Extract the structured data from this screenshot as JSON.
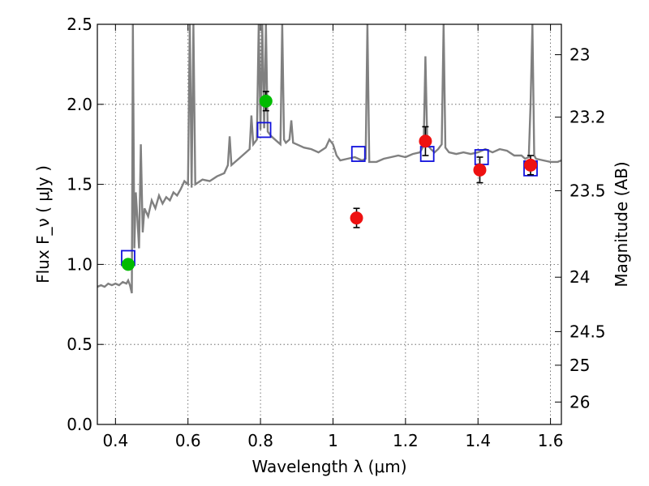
{
  "chart_data": {
    "type": "scatter",
    "xlabel": "Wavelength  λ (μm)",
    "ylabel": "Flux  F_ν  ( μJy )",
    "ylabel_right": "Magnitude (AB)",
    "xlim": [
      0.35,
      1.63
    ],
    "ylim": [
      0.0,
      2.5
    ],
    "grid": true,
    "x_ticks": [
      0.4,
      0.6,
      0.8,
      1.0,
      1.2,
      1.4,
      1.6
    ],
    "x_tick_labels": [
      "0.4",
      "0.6",
      "0.8",
      "1",
      "1.2",
      "1.4",
      "1.6"
    ],
    "y_ticks": [
      0.0,
      0.5,
      1.0,
      1.5,
      2.0,
      2.5
    ],
    "y_tick_labels": [
      "0.0",
      "0.5",
      "1.0",
      "1.5",
      "2.0",
      "2.5"
    ],
    "right_ticks": [
      {
        "label": "23",
        "flux": 2.31
      },
      {
        "label": "23.2",
        "flux": 1.92
      },
      {
        "label": "23.5",
        "flux": 1.46
      },
      {
        "label": "24",
        "flux": 0.92
      },
      {
        "label": "24.5",
        "flux": 0.58
      },
      {
        "label": "25",
        "flux": 0.37
      },
      {
        "label": "26",
        "flux": 0.14
      }
    ],
    "colors": {
      "spectrum": "#808080",
      "green_points": "#00bb00",
      "red_points": "#ee1111",
      "model_boxes": "#1111dd",
      "errorbars": "#000000"
    },
    "series": [
      {
        "kind": "spectrum-line",
        "points": [
          [
            0.35,
            0.86
          ],
          [
            0.36,
            0.87
          ],
          [
            0.37,
            0.86
          ],
          [
            0.38,
            0.88
          ],
          [
            0.39,
            0.87
          ],
          [
            0.4,
            0.88
          ],
          [
            0.41,
            0.87
          ],
          [
            0.42,
            0.89
          ],
          [
            0.43,
            0.88
          ],
          [
            0.435,
            0.9
          ],
          [
            0.44,
            0.87
          ],
          [
            0.445,
            0.82
          ],
          [
            0.448,
            2.5
          ],
          [
            0.452,
            1.1
          ],
          [
            0.456,
            1.45
          ],
          [
            0.46,
            1.3
          ],
          [
            0.465,
            1.1
          ],
          [
            0.47,
            1.75
          ],
          [
            0.475,
            1.2
          ],
          [
            0.48,
            1.35
          ],
          [
            0.49,
            1.3
          ],
          [
            0.5,
            1.4
          ],
          [
            0.51,
            1.35
          ],
          [
            0.52,
            1.43
          ],
          [
            0.53,
            1.38
          ],
          [
            0.54,
            1.42
          ],
          [
            0.55,
            1.4
          ],
          [
            0.56,
            1.45
          ],
          [
            0.57,
            1.43
          ],
          [
            0.58,
            1.47
          ],
          [
            0.59,
            1.52
          ],
          [
            0.6,
            1.5
          ],
          [
            0.605,
            2.5
          ],
          [
            0.61,
            1.48
          ],
          [
            0.615,
            2.5
          ],
          [
            0.62,
            1.5
          ],
          [
            0.64,
            1.53
          ],
          [
            0.66,
            1.52
          ],
          [
            0.68,
            1.55
          ],
          [
            0.7,
            1.57
          ],
          [
            0.71,
            1.62
          ],
          [
            0.715,
            1.8
          ],
          [
            0.72,
            1.62
          ],
          [
            0.73,
            1.64
          ],
          [
            0.74,
            1.66
          ],
          [
            0.75,
            1.68
          ],
          [
            0.76,
            1.7
          ],
          [
            0.77,
            1.72
          ],
          [
            0.775,
            1.93
          ],
          [
            0.78,
            1.75
          ],
          [
            0.79,
            1.78
          ],
          [
            0.795,
            2.5
          ],
          [
            0.8,
            1.84
          ],
          [
            0.805,
            2.5
          ],
          [
            0.81,
            1.85
          ],
          [
            0.815,
            2.5
          ],
          [
            0.82,
            1.83
          ],
          [
            0.83,
            1.8
          ],
          [
            0.84,
            1.78
          ],
          [
            0.85,
            1.76
          ],
          [
            0.855,
            1.75
          ],
          [
            0.86,
            2.5
          ],
          [
            0.865,
            1.78
          ],
          [
            0.87,
            1.76
          ],
          [
            0.88,
            1.78
          ],
          [
            0.885,
            1.9
          ],
          [
            0.89,
            1.76
          ],
          [
            0.9,
            1.75
          ],
          [
            0.92,
            1.73
          ],
          [
            0.94,
            1.72
          ],
          [
            0.96,
            1.7
          ],
          [
            0.98,
            1.73
          ],
          [
            0.99,
            1.78
          ],
          [
            1.0,
            1.75
          ],
          [
            1.01,
            1.68
          ],
          [
            1.02,
            1.65
          ],
          [
            1.04,
            1.66
          ],
          [
            1.06,
            1.67
          ],
          [
            1.08,
            1.65
          ],
          [
            1.09,
            1.66
          ],
          [
            1.095,
            2.5
          ],
          [
            1.1,
            1.64
          ],
          [
            1.12,
            1.64
          ],
          [
            1.14,
            1.66
          ],
          [
            1.16,
            1.67
          ],
          [
            1.18,
            1.68
          ],
          [
            1.2,
            1.67
          ],
          [
            1.22,
            1.69
          ],
          [
            1.24,
            1.7
          ],
          [
            1.25,
            1.74
          ],
          [
            1.255,
            2.3
          ],
          [
            1.26,
            1.75
          ],
          [
            1.27,
            1.72
          ],
          [
            1.28,
            1.7
          ],
          [
            1.29,
            1.72
          ],
          [
            1.3,
            1.75
          ],
          [
            1.305,
            2.5
          ],
          [
            1.31,
            1.73
          ],
          [
            1.32,
            1.7
          ],
          [
            1.34,
            1.69
          ],
          [
            1.36,
            1.7
          ],
          [
            1.38,
            1.69
          ],
          [
            1.4,
            1.7
          ],
          [
            1.42,
            1.72
          ],
          [
            1.44,
            1.7
          ],
          [
            1.46,
            1.72
          ],
          [
            1.48,
            1.71
          ],
          [
            1.5,
            1.68
          ],
          [
            1.52,
            1.68
          ],
          [
            1.53,
            1.66
          ],
          [
            1.54,
            1.67
          ],
          [
            1.545,
            2.0
          ],
          [
            1.55,
            2.5
          ],
          [
            1.555,
            1.68
          ],
          [
            1.56,
            1.66
          ],
          [
            1.58,
            1.65
          ],
          [
            1.6,
            1.64
          ],
          [
            1.62,
            1.64
          ],
          [
            1.63,
            1.65
          ]
        ]
      },
      {
        "kind": "green-points",
        "points": [
          {
            "x": 0.435,
            "y": 1.0,
            "err": 0.03
          },
          {
            "x": 0.815,
            "y": 2.02,
            "err": 0.06
          }
        ]
      },
      {
        "kind": "red-points",
        "points": [
          {
            "x": 1.065,
            "y": 1.29,
            "err": 0.06
          },
          {
            "x": 1.255,
            "y": 1.77,
            "err": 0.09
          },
          {
            "x": 1.405,
            "y": 1.59,
            "err": 0.08
          },
          {
            "x": 1.545,
            "y": 1.62,
            "err": 0.06
          }
        ]
      },
      {
        "kind": "model-boxes",
        "points": [
          {
            "x": 0.435,
            "y": 1.04
          },
          {
            "x": 0.81,
            "y": 1.84
          },
          {
            "x": 1.07,
            "y": 1.69
          },
          {
            "x": 1.26,
            "y": 1.69
          },
          {
            "x": 1.41,
            "y": 1.67
          },
          {
            "x": 1.545,
            "y": 1.6
          }
        ]
      }
    ]
  }
}
